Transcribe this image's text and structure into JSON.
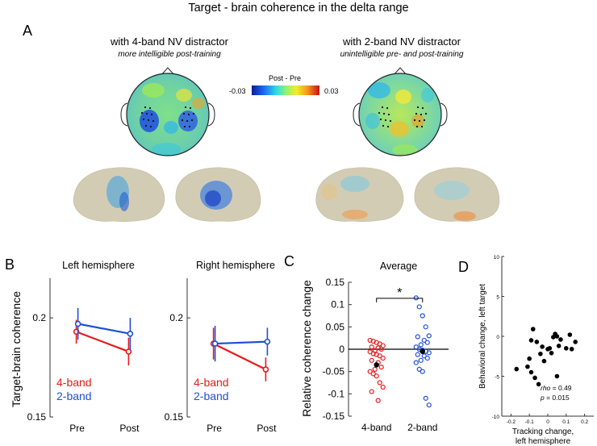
{
  "figure": {
    "title": "Target - brain coherence in the delta range",
    "panel_labels": [
      "A",
      "B",
      "C",
      "D"
    ]
  },
  "panel_a": {
    "left_title": "with 4-band NV distractor",
    "left_subtitle": "more intelligible post-training",
    "right_title": "with 2-band NV distractor",
    "right_subtitle": "unintelligible pre- and post-training",
    "colorbar": {
      "title": "Post - Pre",
      "min_label": "-0.03",
      "max_label": "0.03",
      "min": -0.03,
      "max": 0.03
    }
  },
  "colors": {
    "red": "#e8191b",
    "blue": "#1f4fd8",
    "scatter": "#000000",
    "axis": "#333333",
    "scalp_base": "#6fd0a6",
    "brain_base": "#d3ccb4"
  },
  "chart_data": [
    {
      "id": "B-left",
      "type": "line",
      "title": "Left hemisphere",
      "ylabel": "Target-brain coherence",
      "categories": [
        "Pre",
        "Post"
      ],
      "ylim": [
        0.15,
        0.22
      ],
      "yticks": [
        0.15,
        0.2
      ],
      "ytick_labels": [
        "0.15",
        "0.2"
      ],
      "series": [
        {
          "name": "4-band",
          "values": [
            0.193,
            0.183
          ],
          "errors": [
            0.006,
            0.007
          ]
        },
        {
          "name": "2-band",
          "values": [
            0.197,
            0.192
          ],
          "errors": [
            0.008,
            0.008
          ]
        }
      ]
    },
    {
      "id": "B-right",
      "type": "line",
      "title": "Right hemisphere",
      "ylabel": "",
      "categories": [
        "Pre",
        "Post"
      ],
      "ylim": [
        0.15,
        0.22
      ],
      "yticks": [
        0.15,
        0.2
      ],
      "ytick_labels": [
        "0.15",
        "0.2"
      ],
      "series": [
        {
          "name": "4-band",
          "values": [
            0.187,
            0.174
          ],
          "errors": [
            0.008,
            0.006
          ]
        },
        {
          "name": "2-band",
          "values": [
            0.187,
            0.188
          ],
          "errors": [
            0.009,
            0.007
          ]
        }
      ]
    },
    {
      "id": "C",
      "type": "scatter",
      "title": "Average",
      "ylabel": "Relative coherence change",
      "categories": [
        "4-band",
        "2-band"
      ],
      "ylim": [
        -0.15,
        0.15
      ],
      "yticks": [
        -0.15,
        -0.1,
        -0.05,
        0,
        0.05,
        0.1,
        0.15
      ],
      "ytick_labels": [
        "-0.15",
        "-0.1",
        "-0.05",
        "0",
        "0.05",
        "0.1",
        "0.15"
      ],
      "significance": "*",
      "series": [
        {
          "name": "4-band",
          "mean": -0.035,
          "points": [
            0.02,
            0.018,
            0.015,
            0.012,
            0.008,
            0.005,
            0.003,
            0.0,
            -0.003,
            -0.006,
            -0.01,
            -0.012,
            -0.015,
            -0.02,
            -0.025,
            -0.03,
            -0.04,
            -0.045,
            -0.05,
            -0.055,
            -0.06,
            -0.075,
            -0.085,
            -0.095,
            -0.115
          ]
        },
        {
          "name": "2-band",
          "mean": -0.005,
          "points": [
            0.115,
            0.095,
            0.075,
            0.05,
            0.03,
            0.028,
            0.02,
            0.015,
            0.01,
            0.005,
            0.0,
            -0.002,
            -0.005,
            -0.008,
            -0.012,
            -0.015,
            -0.02,
            -0.025,
            -0.03,
            -0.045,
            -0.05,
            -0.11,
            -0.125
          ]
        }
      ]
    },
    {
      "id": "D",
      "type": "scatter",
      "title": "",
      "xlabel": "Tracking change,",
      "xlabel2": "left hemisphere",
      "ylabel": "Behavioral change, left target",
      "xlim": [
        -0.25,
        0.25
      ],
      "ylim": [
        -10,
        10
      ],
      "xticks": [
        -0.2,
        -0.1,
        0,
        0.1,
        0.2
      ],
      "xtick_labels": [
        "-0.2",
        "-0.1",
        "0",
        "0.1",
        "0.2"
      ],
      "yticks": [
        -10,
        -5,
        0,
        5,
        10
      ],
      "ytick_labels": [
        "-10",
        "-5",
        "0",
        "5",
        "10"
      ],
      "stats": {
        "rho_label": "rho",
        "rho_value": "= 0.49",
        "p_label": "p",
        "p_value": "= 0.015"
      },
      "x": [
        -0.17,
        -0.11,
        -0.1,
        -0.09,
        -0.09,
        -0.08,
        -0.07,
        -0.06,
        -0.05,
        -0.04,
        -0.03,
        -0.02,
        0.0,
        0.01,
        0.02,
        0.03,
        0.04,
        0.05,
        0.05,
        0.06,
        0.07,
        0.1,
        0.12,
        0.13,
        0.15
      ],
      "y": [
        -4.1,
        -3.8,
        -2.8,
        -4.5,
        -0.5,
        0.9,
        -5.2,
        -0.7,
        -6.0,
        -2.2,
        -1.3,
        -3.1,
        -1.6,
        -1.5,
        -2.1,
        -0.1,
        0.3,
        0.0,
        -5.0,
        -1.2,
        -0.4,
        -1.5,
        0.2,
        -1.6,
        -0.7
      ]
    }
  ]
}
